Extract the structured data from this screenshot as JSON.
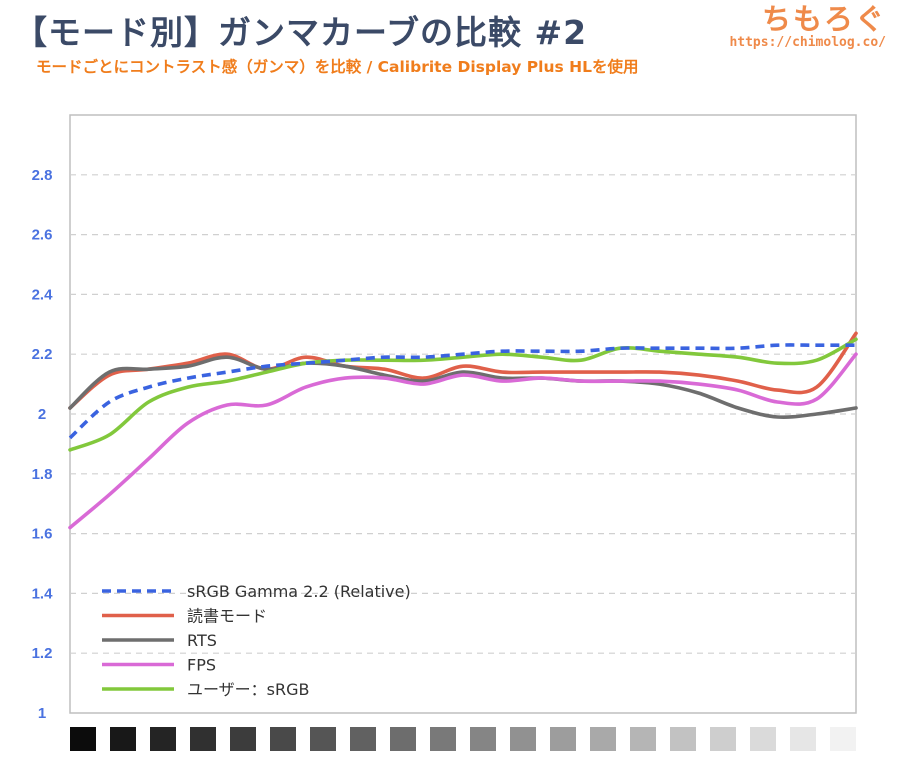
{
  "header": {
    "title": "【モード別】ガンマカーブの比較 #2",
    "subtitle": "モードごとにコントラスト感（ガンマ）を比較 / Calibrite Display Plus HLを使用",
    "brand_name": "ちもろぐ",
    "brand_url": "https://chimolog.co/"
  },
  "chart_data": {
    "type": "line",
    "title": "【モード別】ガンマカーブの比較 #2",
    "ylim": [
      1,
      3.0
    ],
    "yticks": [
      1,
      1.2,
      1.4,
      1.6,
      1.8,
      2,
      2.2,
      2.4,
      2.6,
      2.8
    ],
    "ytick_labels": [
      "1",
      "1.2",
      "1.4",
      "1.6",
      "1.8",
      "2",
      "2.2",
      "2.4",
      "2.6",
      "2.8"
    ],
    "grid": true,
    "legend_position": "bottom-left",
    "x": [
      1,
      2,
      3,
      4,
      5,
      6,
      7,
      8,
      9,
      10,
      11,
      12,
      13,
      14,
      15,
      16,
      17,
      18,
      19,
      20,
      21
    ],
    "x_gradient_swatches": 20,
    "series": [
      {
        "name": "sRGB Gamma 2.2 (Relative)",
        "color": "#3a63e0",
        "dashed": true,
        "values": [
          1.92,
          2.04,
          2.09,
          2.12,
          2.14,
          2.16,
          2.17,
          2.18,
          2.19,
          2.19,
          2.2,
          2.21,
          2.21,
          2.21,
          2.22,
          2.22,
          2.22,
          2.22,
          2.23,
          2.23,
          2.23
        ]
      },
      {
        "name": "読書モード",
        "color": "#e0604a",
        "dashed": false,
        "values": [
          2.02,
          2.13,
          2.15,
          2.17,
          2.2,
          2.15,
          2.19,
          2.16,
          2.15,
          2.12,
          2.16,
          2.14,
          2.14,
          2.14,
          2.14,
          2.14,
          2.13,
          2.11,
          2.08,
          2.09,
          2.27
        ]
      },
      {
        "name": "RTS",
        "color": "#6e6e6e",
        "dashed": false,
        "values": [
          2.02,
          2.14,
          2.15,
          2.16,
          2.19,
          2.15,
          2.17,
          2.16,
          2.13,
          2.11,
          2.14,
          2.12,
          2.12,
          2.11,
          2.11,
          2.1,
          2.07,
          2.02,
          1.99,
          2.0,
          2.02
        ]
      },
      {
        "name": "FPS",
        "color": "#d96ad6",
        "dashed": false,
        "values": [
          1.62,
          1.73,
          1.85,
          1.97,
          2.03,
          2.03,
          2.09,
          2.12,
          2.12,
          2.1,
          2.13,
          2.11,
          2.12,
          2.11,
          2.11,
          2.11,
          2.1,
          2.08,
          2.04,
          2.05,
          2.2
        ]
      },
      {
        "name": "ユーザー：sRGB",
        "color": "#82c83c",
        "dashed": false,
        "values": [
          1.88,
          1.93,
          2.04,
          2.09,
          2.11,
          2.14,
          2.17,
          2.18,
          2.18,
          2.18,
          2.19,
          2.2,
          2.19,
          2.18,
          2.22,
          2.21,
          2.2,
          2.19,
          2.17,
          2.18,
          2.25
        ]
      }
    ]
  }
}
